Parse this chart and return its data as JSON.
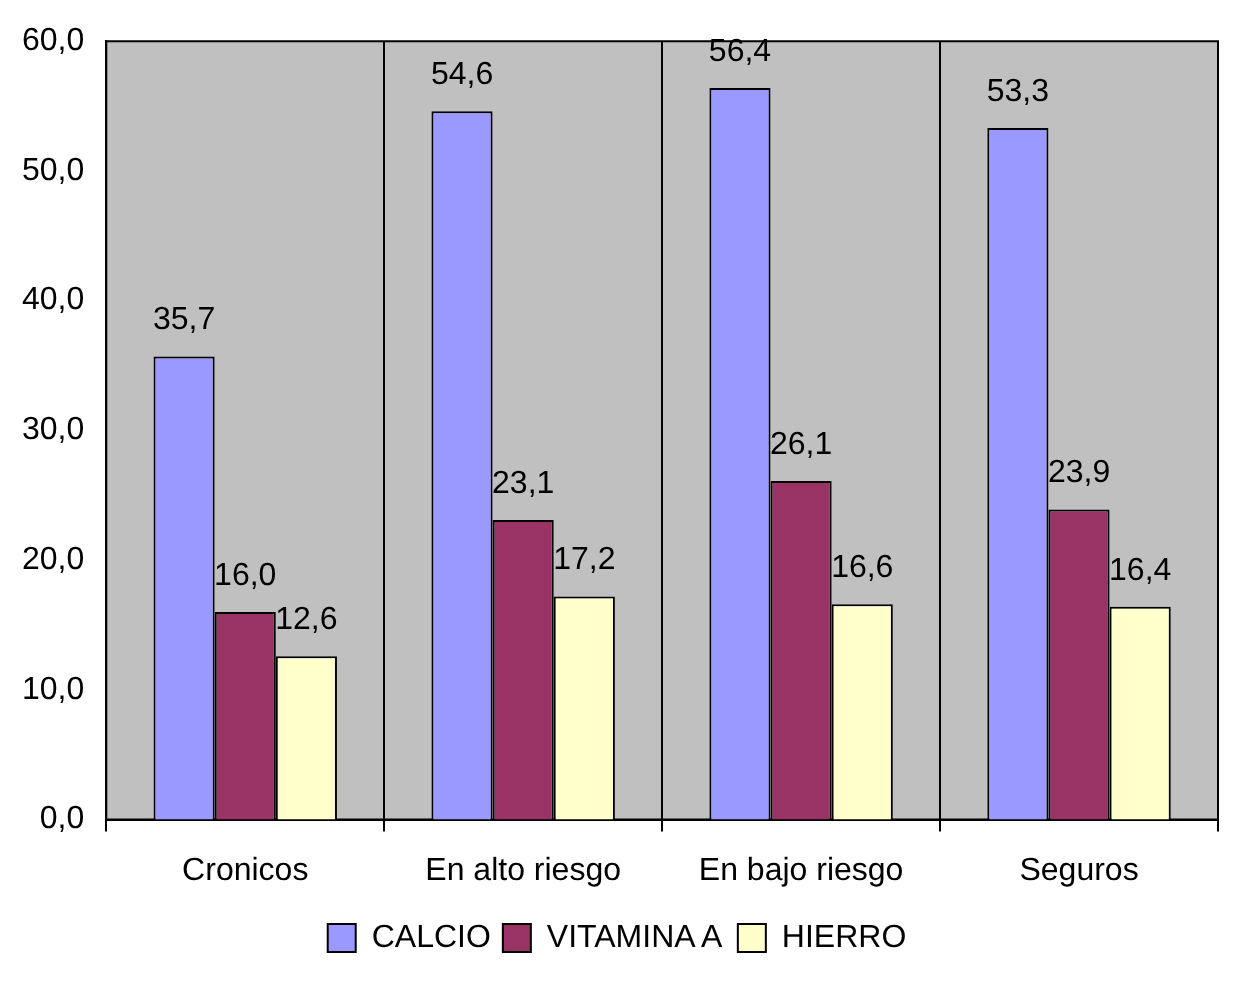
{
  "chart_data": {
    "type": "bar",
    "categories": [
      "Cronicos",
      "En alto riesgo",
      "En bajo riesgo",
      "Seguros"
    ],
    "series": [
      {
        "name": "CALCIO",
        "color": "#9999ff",
        "values": [
          35.7,
          54.6,
          56.4,
          53.3
        ],
        "value_labels": [
          "35,7",
          "54,6",
          "56,4",
          "53,3"
        ]
      },
      {
        "name": "VITAMINA A",
        "color": "#993366",
        "values": [
          16.0,
          23.1,
          26.1,
          23.9
        ],
        "value_labels": [
          "16,0",
          "23,1",
          "26,1",
          "23,9"
        ]
      },
      {
        "name": "HIERRO",
        "color": "#ffffcc",
        "values": [
          12.6,
          17.2,
          16.6,
          16.4
        ],
        "value_labels": [
          "12,6",
          "17,2",
          "16,6",
          "16,4"
        ]
      }
    ],
    "ylim": [
      0,
      60
    ],
    "yticks": [
      {
        "value": 0,
        "label": "0,0"
      },
      {
        "value": 10,
        "label": "10,0"
      },
      {
        "value": 20,
        "label": "20,0"
      },
      {
        "value": 30,
        "label": "30,0"
      },
      {
        "value": 40,
        "label": "40,0"
      },
      {
        "value": 50,
        "label": "50,0"
      },
      {
        "value": 60,
        "label": "60,0"
      }
    ],
    "grid": "x",
    "legend": "bottom"
  }
}
